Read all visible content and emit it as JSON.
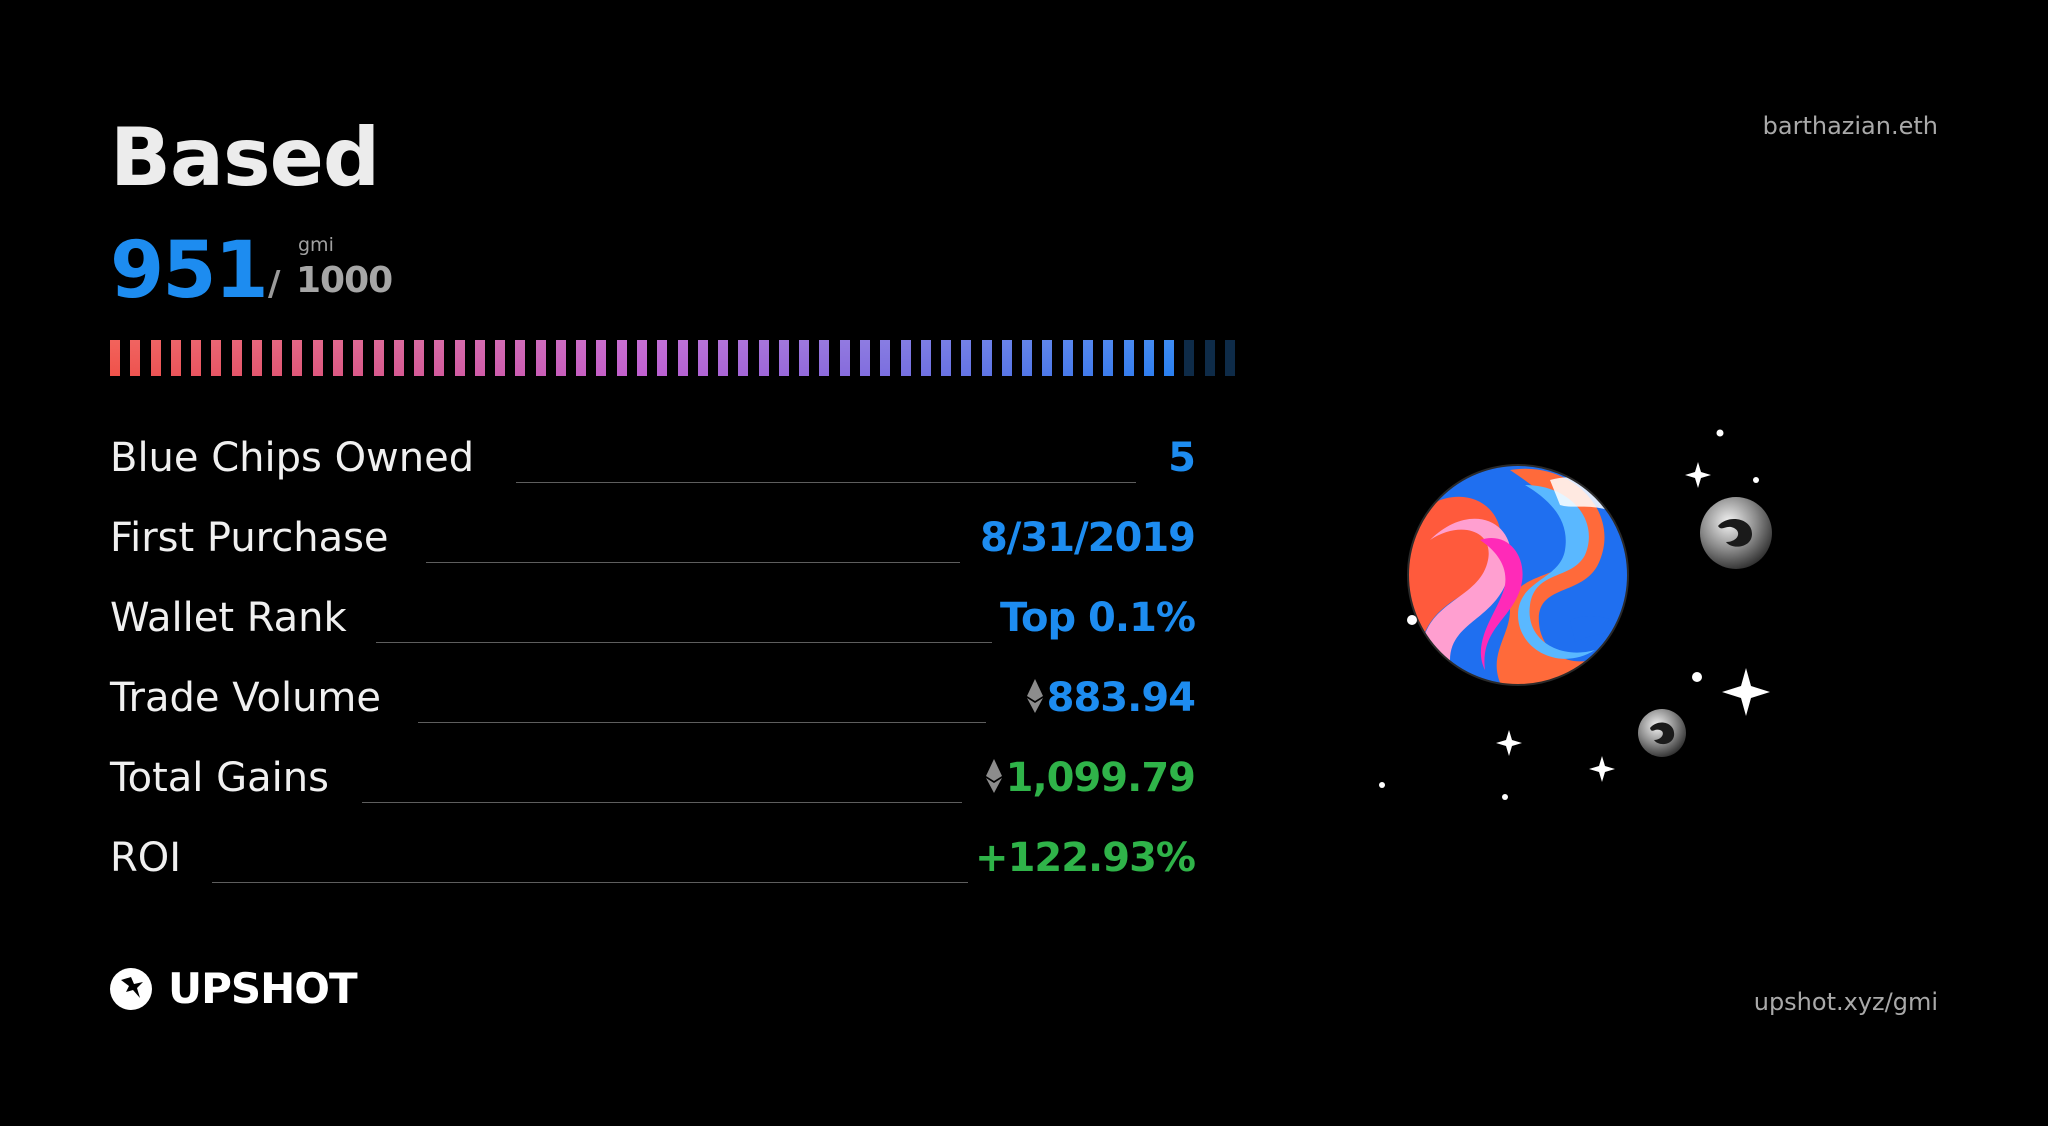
{
  "card": {
    "title": "Based",
    "wallet": "barthazian.eth",
    "score": {
      "value": "951",
      "separator": "/",
      "unit": "gmi",
      "max": "1000",
      "fill_fraction": 0.951
    },
    "stats": [
      {
        "label": "Blue Chips Owned",
        "value": "5",
        "color": "#1d8cf0",
        "eth": false
      },
      {
        "label": "First Purchase",
        "value": "8/31/2019",
        "color": "#1d8cf0",
        "eth": false
      },
      {
        "label": "Wallet Rank",
        "value": "Top 0.1%",
        "color": "#1d8cf0",
        "eth": false
      },
      {
        "label": "Trade Volume",
        "value": "883.94",
        "color": "#1d8cf0",
        "eth": true
      },
      {
        "label": "Total Gains",
        "value": "1,099.79",
        "color": "#2fb349",
        "eth": true
      },
      {
        "label": "ROI",
        "value": "+122.93%",
        "color": "#2fb349",
        "eth": false
      }
    ],
    "brand": {
      "name": "UPSHOT",
      "icon": "upshot-logo-icon"
    },
    "footer_url": "upshot.xyz/gmi",
    "icons": {
      "currency": "ethereum-icon",
      "illustration": "planet-illustration"
    },
    "colors": {
      "accent_blue": "#1d8cf0",
      "accent_green": "#2fb349",
      "meter_start": "#f0524a",
      "meter_mid": "#c05fd0",
      "meter_end": "#2a7ff0",
      "meter_empty": "#0e2b48"
    }
  }
}
